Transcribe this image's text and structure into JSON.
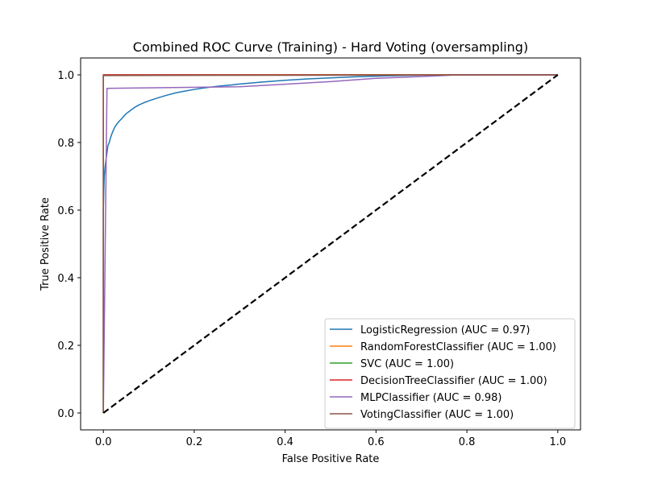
{
  "chart_data": {
    "type": "line",
    "title": "Combined ROC Curve (Training) - Hard Voting (oversampling)",
    "xlabel": "False Positive Rate",
    "ylabel": "True Positive Rate",
    "xlim": [
      -0.05,
      1.05
    ],
    "ylim": [
      -0.05,
      1.05
    ],
    "x_ticks": [
      0.0,
      0.2,
      0.4,
      0.6,
      0.8,
      1.0
    ],
    "y_ticks": [
      0.0,
      0.2,
      0.4,
      0.6,
      0.8,
      1.0
    ],
    "x_tick_labels": [
      "0.0",
      "0.2",
      "0.4",
      "0.6",
      "0.8",
      "1.0"
    ],
    "y_tick_labels": [
      "0.0",
      "0.2",
      "0.4",
      "0.6",
      "0.8",
      "1.0"
    ],
    "grid": false,
    "legend_position": "lower-right",
    "series": [
      {
        "name": "LogisticRegression (AUC = 0.97)",
        "color": "#1f77b4",
        "x": [
          0,
          0,
          0.001,
          0.002,
          0.004,
          0.006,
          0.008,
          0.01,
          0.013,
          0.016,
          0.02,
          0.025,
          0.03,
          0.035,
          0.04,
          0.05,
          0.06,
          0.07,
          0.08,
          0.09,
          0.1,
          0.12,
          0.14,
          0.16,
          0.18,
          0.2,
          0.22,
          0.25,
          0.28,
          0.3,
          0.35,
          0.4,
          0.45,
          0.5,
          0.55,
          0.6,
          0.65,
          0.7,
          0.8,
          0.9,
          1.0
        ],
        "y": [
          0,
          0.6,
          0.66,
          0.7,
          0.73,
          0.75,
          0.77,
          0.79,
          0.8,
          0.815,
          0.83,
          0.845,
          0.855,
          0.863,
          0.87,
          0.885,
          0.895,
          0.905,
          0.912,
          0.918,
          0.923,
          0.932,
          0.94,
          0.947,
          0.952,
          0.957,
          0.961,
          0.966,
          0.97,
          0.973,
          0.979,
          0.984,
          0.988,
          0.991,
          0.994,
          0.996,
          0.998,
          0.999,
          1.0,
          1.0,
          1.0
        ]
      },
      {
        "name": "RandomForestClassifier (AUC = 1.00)",
        "color": "#ff7f0e",
        "x": [
          0,
          0,
          1
        ],
        "y": [
          0,
          1,
          1
        ]
      },
      {
        "name": "SVC (AUC = 1.00)",
        "color": "#2ca02c",
        "x": [
          0,
          0,
          1
        ],
        "y": [
          0,
          1,
          1
        ]
      },
      {
        "name": "DecisionTreeClassifier (AUC = 1.00)",
        "color": "#d62728",
        "x": [
          0,
          0,
          1
        ],
        "y": [
          0,
          1,
          1
        ]
      },
      {
        "name": "MLPClassifier (AUC = 0.98)",
        "color": "#9467bd",
        "x": [
          0,
          0.008,
          0.3,
          0.5,
          0.6,
          0.7,
          0.78,
          1.0
        ],
        "y": [
          0,
          0.96,
          0.965,
          0.98,
          0.99,
          0.995,
          1.0,
          1.0
        ]
      },
      {
        "name": "VotingClassifier (AUC = 1.00)",
        "color": "#8c564b",
        "x": [
          0,
          0,
          1
        ],
        "y": [
          0,
          0.998,
          1
        ]
      }
    ],
    "reference_line": {
      "x": [
        0,
        1
      ],
      "y": [
        0,
        1
      ],
      "color": "#000000",
      "style": "dashed"
    }
  }
}
